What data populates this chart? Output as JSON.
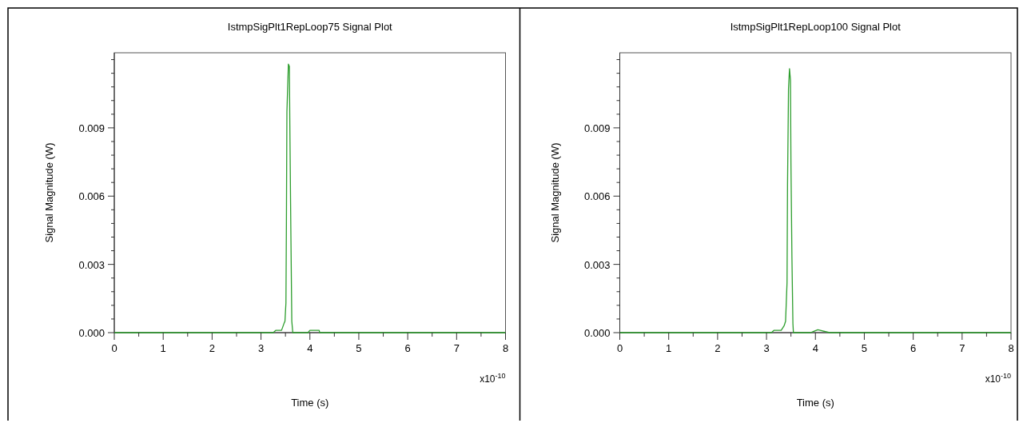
{
  "chart_data": [
    {
      "type": "line",
      "title": "IstmpSigPlt1RepLoop75 Signal Plot",
      "xlabel": "Time (s)",
      "ylabel": "Signal Magnitude (W)",
      "annotations": [
        "x10$^{-10}$"
      ],
      "xlim": [
        0,
        8
      ],
      "ylim": [
        0,
        0.0123
      ],
      "xticks": [
        0,
        {
          "value": 0.5,
          "label": null
        },
        1,
        {
          "value": 1.5,
          "label": null
        },
        2,
        {
          "value": 2.5,
          "label": null
        },
        3,
        {
          "value": 3.5,
          "label": null
        },
        4,
        {
          "value": 4.5,
          "label": null
        },
        5,
        {
          "value": 5.5,
          "label": null
        },
        6,
        {
          "value": 6.5,
          "label": null
        },
        7,
        {
          "value": 7.5,
          "label": null
        },
        8
      ],
      "yticks": [
        {
          "value": 0,
          "label": "0.000"
        },
        {
          "value": 0.0006,
          "label": null
        },
        {
          "value": 0.0012,
          "label": null
        },
        {
          "value": 0.0018,
          "label": null
        },
        {
          "value": 0.0024,
          "label": null
        },
        {
          "value": 0.003,
          "label": "0.003"
        },
        {
          "value": 0.0036,
          "label": null
        },
        {
          "value": 0.0042,
          "label": null
        },
        {
          "value": 0.0048,
          "label": null
        },
        {
          "value": 0.0054,
          "label": null
        },
        {
          "value": 0.006,
          "label": "0.006"
        },
        {
          "value": 0.0066,
          "label": null
        },
        {
          "value": 0.0072,
          "label": null
        },
        {
          "value": 0.0078,
          "label": null
        },
        {
          "value": 0.0084,
          "label": null
        },
        {
          "value": 0.009,
          "label": "0.009"
        },
        {
          "value": 0.0096,
          "label": null
        },
        {
          "value": 0.0102,
          "label": null
        },
        {
          "value": 0.0108,
          "label": null
        },
        {
          "value": 0.0114,
          "label": null
        },
        {
          "value": 0.012,
          "label": null
        }
      ],
      "series": [
        {
          "color": "#2e9e2e",
          "x": [
            0,
            3.25,
            3.3,
            3.4,
            3.42,
            3.47,
            3.49,
            3.51,
            3.52,
            3.53,
            3.56,
            3.58,
            3.59,
            3.61,
            3.63,
            3.65,
            3.96,
            4.0,
            4.19,
            4.2,
            8
          ],
          "values": [
            0,
            0,
            0.0001,
            0.0001,
            0.0001,
            0.0004,
            0.0005,
            0.0013,
            0.0049,
            0.0097,
            0.0118,
            0.0117,
            0.0091,
            0.0046,
            0.0005,
            0,
            0,
            0.0001,
            0.0001,
            0,
            0
          ]
        }
      ]
    },
    {
      "type": "line",
      "title": "IstmpSigPlt1RepLoop100 Signal Plot",
      "xlabel": "Time (s)",
      "ylabel": "Signal Magnitude (W)",
      "annotations": [
        "x10$^{-10}$"
      ],
      "xlim": [
        0,
        8
      ],
      "ylim": [
        0,
        0.0123
      ],
      "xticks": [
        0,
        {
          "value": 0.5,
          "label": null
        },
        1,
        {
          "value": 1.5,
          "label": null
        },
        2,
        {
          "value": 2.5,
          "label": null
        },
        3,
        {
          "value": 3.5,
          "label": null
        },
        4,
        {
          "value": 4.5,
          "label": null
        },
        5,
        {
          "value": 5.5,
          "label": null
        },
        6,
        {
          "value": 6.5,
          "label": null
        },
        7,
        {
          "value": 7.5,
          "label": null
        },
        8
      ],
      "yticks": [
        {
          "value": 0,
          "label": "0.000"
        },
        {
          "value": 0.0006,
          "label": null
        },
        {
          "value": 0.0012,
          "label": null
        },
        {
          "value": 0.0018,
          "label": null
        },
        {
          "value": 0.0024,
          "label": null
        },
        {
          "value": 0.003,
          "label": "0.003"
        },
        {
          "value": 0.0036,
          "label": null
        },
        {
          "value": 0.0042,
          "label": null
        },
        {
          "value": 0.0048,
          "label": null
        },
        {
          "value": 0.0054,
          "label": null
        },
        {
          "value": 0.006,
          "label": "0.006"
        },
        {
          "value": 0.0066,
          "label": null
        },
        {
          "value": 0.0072,
          "label": null
        },
        {
          "value": 0.0078,
          "label": null
        },
        {
          "value": 0.0084,
          "label": null
        },
        {
          "value": 0.009,
          "label": "0.009"
        },
        {
          "value": 0.0096,
          "label": null
        },
        {
          "value": 0.0102,
          "label": null
        },
        {
          "value": 0.0108,
          "label": null
        },
        {
          "value": 0.0114,
          "label": null
        },
        {
          "value": 0.012,
          "label": null
        }
      ],
      "series": [
        {
          "color": "#2e9e2e",
          "x": [
            0,
            3.1,
            3.15,
            3.3,
            3.36,
            3.39,
            3.42,
            3.43,
            3.45,
            3.47,
            3.49,
            3.5,
            3.52,
            3.54,
            3.55,
            3.9,
            4.05,
            4.29,
            8
          ],
          "values": [
            0,
            0,
            0.0001,
            0.0001,
            0.0003,
            0.0005,
            0.0022,
            0.0065,
            0.0107,
            0.0116,
            0.0111,
            0.0074,
            0.0033,
            0.0004,
            0,
            0,
            0.00013,
            0,
            0
          ]
        }
      ]
    }
  ]
}
